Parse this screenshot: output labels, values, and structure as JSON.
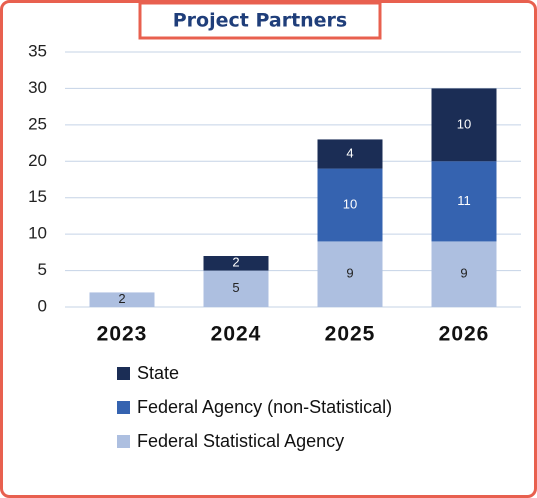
{
  "chart_data": {
    "type": "stacked_bar",
    "title": "Project Partners",
    "categories": [
      "2023",
      "2024",
      "2025",
      "2026"
    ],
    "series": [
      {
        "name": "Federal Statistical Agency",
        "color": "#adbfe0",
        "values": [
          2,
          5,
          9,
          9
        ]
      },
      {
        "name": "Federal Agency (non-Statistical)",
        "color": "#3563b0",
        "values": [
          null,
          null,
          10,
          11
        ]
      },
      {
        "name": "State",
        "color": "#1b2d55",
        "values": [
          null,
          2,
          4,
          10
        ]
      }
    ],
    "ylim": [
      0,
      35
    ],
    "yticks": [
      0,
      5,
      10,
      15,
      20,
      25,
      30,
      35
    ],
    "grid": true,
    "legend": "bottom"
  }
}
